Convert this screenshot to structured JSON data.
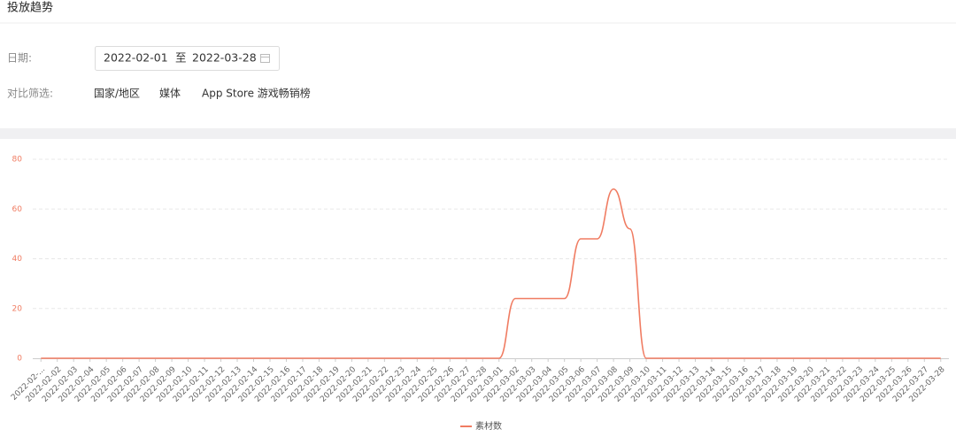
{
  "header": {
    "title": "投放趋势"
  },
  "filters": {
    "date_label": "日期:",
    "start_date": "2022-02-01",
    "separator": "至",
    "end_date": "2022-03-28",
    "compare_label": "对比筛选:",
    "options": [
      "国家/地区",
      "媒体",
      "App Store 游戏畅销榜"
    ]
  },
  "chart_data": {
    "type": "line",
    "color": "#f07c62",
    "grid": true,
    "ylim": [
      0,
      80
    ],
    "yticks": [
      0,
      20,
      40,
      60,
      80
    ],
    "categories": [
      "2022-02-...",
      "2022-02-02",
      "2022-02-03",
      "2022-02-04",
      "2022-02-05",
      "2022-02-06",
      "2022-02-07",
      "2022-02-08",
      "2022-02-09",
      "2022-02-10",
      "2022-02-11",
      "2022-02-12",
      "2022-02-13",
      "2022-02-14",
      "2022-02-15",
      "2022-02-16",
      "2022-02-17",
      "2022-02-18",
      "2022-02-19",
      "2022-02-20",
      "2022-02-21",
      "2022-02-22",
      "2022-02-23",
      "2022-02-24",
      "2022-02-25",
      "2022-02-26",
      "2022-02-27",
      "2022-02-28",
      "2022-03-01",
      "2022-03-02",
      "2022-03-03",
      "2022-03-04",
      "2022-03-05",
      "2022-03-06",
      "2022-03-07",
      "2022-03-08",
      "2022-03-09",
      "2022-03-10",
      "2022-03-11",
      "2022-03-12",
      "2022-03-13",
      "2022-03-14",
      "2022-03-15",
      "2022-03-16",
      "2022-03-17",
      "2022-03-18",
      "2022-03-19",
      "2022-03-20",
      "2022-03-21",
      "2022-03-22",
      "2022-03-23",
      "2022-03-24",
      "2022-03-25",
      "2022-03-26",
      "2022-03-27",
      "2022-03-28"
    ],
    "series": [
      {
        "name": "素材数",
        "color": "#f07c62",
        "values": [
          0,
          0,
          0,
          0,
          0,
          0,
          0,
          0,
          0,
          0,
          0,
          0,
          0,
          0,
          0,
          0,
          0,
          0,
          0,
          0,
          0,
          0,
          0,
          0,
          0,
          0,
          0,
          0,
          0,
          24,
          24,
          24,
          24,
          48,
          48,
          68,
          52,
          0,
          0,
          0,
          0,
          0,
          0,
          0,
          0,
          0,
          0,
          0,
          0,
          0,
          0,
          0,
          0,
          0,
          0,
          0
        ]
      }
    ]
  }
}
